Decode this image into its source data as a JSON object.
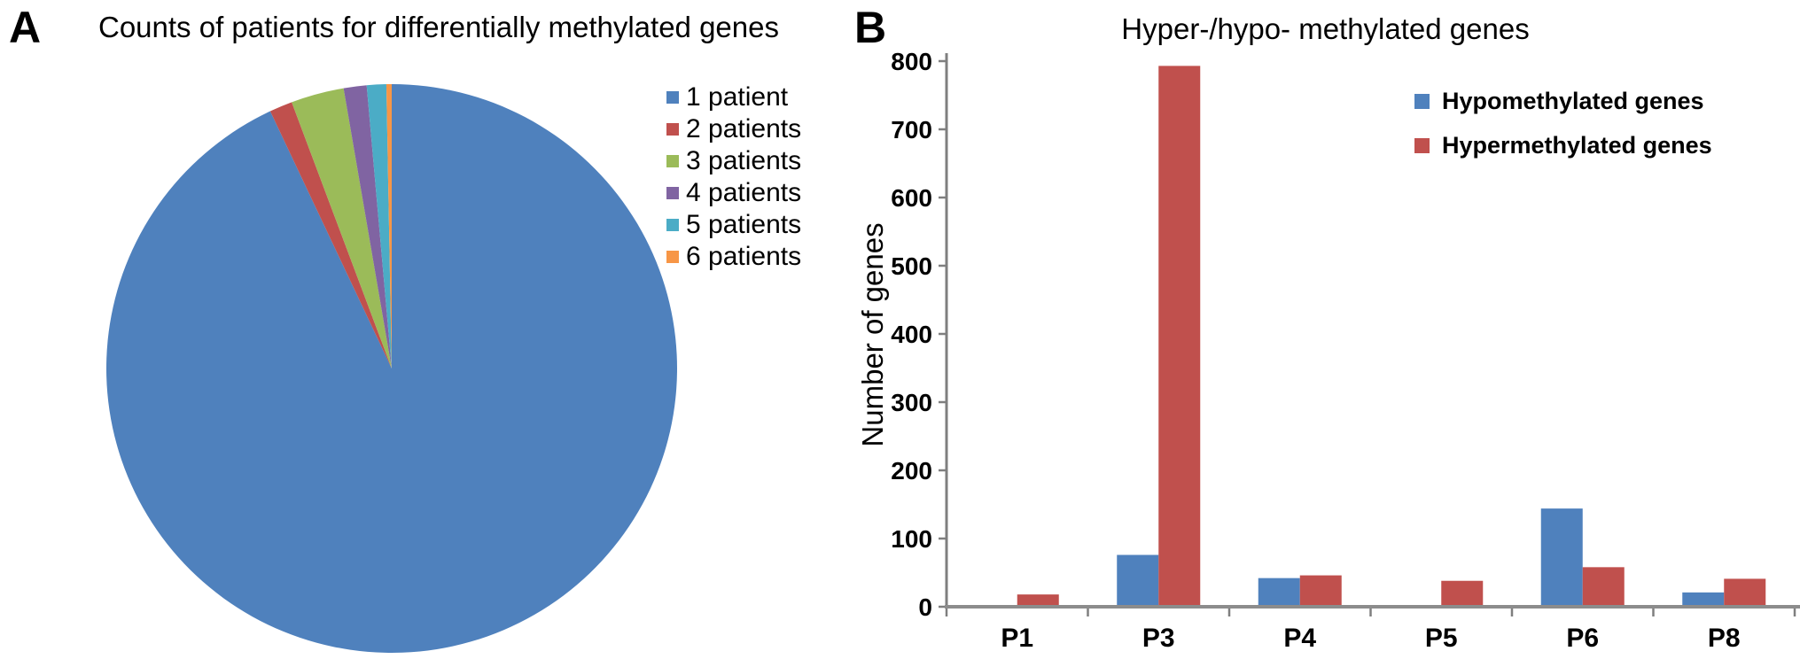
{
  "panels": {
    "a": {
      "label": "A"
    },
    "b": {
      "label": "B"
    }
  },
  "chart_data": [
    {
      "type": "pie",
      "title": "Counts of patients for differentially methylated genes",
      "labels": [
        "1 patient",
        "2 patients",
        "3 patients",
        "4 patients",
        "5 patients",
        "6 patients"
      ],
      "values_percent": [
        93.0,
        1.3,
        3.0,
        1.3,
        1.1,
        0.3
      ],
      "colors": [
        "#4F81BD",
        "#C0504D",
        "#9BBB59",
        "#8064A2",
        "#4BACC6",
        "#F79646"
      ],
      "start_angle_deg": 0,
      "direction": "clockwise",
      "legend_position": "right"
    },
    {
      "type": "bar",
      "title": "Hyper-/hypo- methylated genes",
      "ylabel": "Number of genes",
      "categories": [
        "P1",
        "P3",
        "P4",
        "P5",
        "P6",
        "P8"
      ],
      "series": [
        {
          "name": "Hypomethylated genes",
          "color": "#4F81BD",
          "values": [
            1,
            76,
            42,
            2,
            144,
            21
          ]
        },
        {
          "name": "Hypermethylated genes",
          "color": "#C0504D",
          "values": [
            18,
            793,
            46,
            38,
            58,
            41
          ]
        }
      ],
      "ylim": [
        0,
        800
      ],
      "yticks": [
        0,
        100,
        200,
        300,
        400,
        500,
        600,
        700,
        800
      ],
      "grid": false,
      "legend_position": "upper right",
      "axis_color": "#7f7f7f"
    }
  ]
}
